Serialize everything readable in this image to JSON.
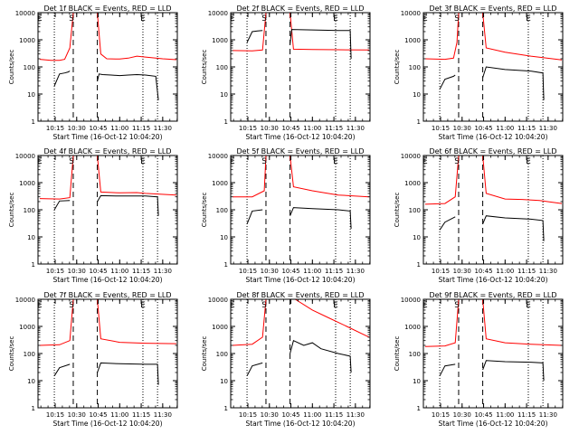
{
  "figure": {
    "start_time_label": "Start Time (16-Oct-12 10:04:20)",
    "ylabel": "Counts/sec",
    "y_tick_labels": [
      "1",
      "10",
      "100",
      "1000",
      "10000"
    ],
    "x_tick_labels": [
      "10:15",
      "10:30",
      "10:45",
      "11:00",
      "11:15",
      "11:30"
    ],
    "colors": {
      "events": "#000000",
      "lld": "#ff0000",
      "axes": "#000000"
    }
  },
  "chart_data": [
    {
      "type": "line",
      "title": "Det 1f BLACK = Events, RED = LLD",
      "xlim": [
        10.05,
        11.67
      ],
      "ylim": [
        1,
        10000
      ],
      "yscale": "log",
      "markers": [
        {
          "label": "E",
          "x": 10.07
        },
        {
          "label": "S",
          "x": 10.44
        },
        {
          "label": "E",
          "x": 11.27
        }
      ],
      "vlines": [
        {
          "x": 10.24,
          "style": "dotted"
        },
        {
          "x": 10.46,
          "style": "dashed"
        },
        {
          "x": 10.74,
          "style": "dashed"
        },
        {
          "x": 11.27,
          "style": "dotted"
        },
        {
          "x": 11.44,
          "style": "dotted"
        }
      ],
      "series": [
        {
          "name": "LLD",
          "color": "#ff0000",
          "x": [
            10.07,
            10.2,
            10.3,
            10.36,
            10.42,
            10.46,
            10.74,
            10.78,
            10.85,
            11.0,
            11.1,
            11.2,
            11.3,
            11.5,
            11.66
          ],
          "y": [
            190,
            175,
            175,
            190,
            500,
            10000,
            10000,
            300,
            200,
            195,
            210,
            250,
            230,
            200,
            185
          ]
        },
        {
          "name": "Events",
          "color": "#000000",
          "x": [
            10.24,
            10.3,
            10.36,
            10.4,
            10.42
          ],
          "y": [
            20,
            55,
            60,
            65,
            70
          ]
        },
        {
          "name": "Events",
          "color": "#000000",
          "x": [
            10.74,
            10.76,
            10.8,
            10.9,
            11.0,
            11.1,
            11.2,
            11.3,
            11.42,
            11.45
          ],
          "y": [
            30,
            55,
            52,
            50,
            48,
            50,
            52,
            50,
            45,
            6
          ]
        }
      ]
    },
    {
      "type": "line",
      "title": "Det 2f BLACK = Events, RED = LLD",
      "xlim": [
        10.05,
        11.67
      ],
      "ylim": [
        1,
        10000
      ],
      "yscale": "log",
      "markers": [
        {
          "label": "E",
          "x": 10.07
        },
        {
          "label": "S",
          "x": 10.44
        },
        {
          "label": "E",
          "x": 11.27
        }
      ],
      "vlines": [
        {
          "x": 10.24,
          "style": "dotted"
        },
        {
          "x": 10.46,
          "style": "dashed"
        },
        {
          "x": 10.74,
          "style": "dashed"
        },
        {
          "x": 11.27,
          "style": "dotted"
        },
        {
          "x": 11.44,
          "style": "dotted"
        }
      ],
      "series": [
        {
          "name": "LLD",
          "color": "#ff0000",
          "x": [
            10.07,
            10.3,
            10.42,
            10.46,
            10.74,
            10.78,
            11.0,
            11.3,
            11.66
          ],
          "y": [
            400,
            390,
            420,
            10000,
            10000,
            450,
            440,
            430,
            420
          ]
        },
        {
          "name": "Events",
          "color": "#000000",
          "x": [
            10.24,
            10.3,
            10.36,
            10.42
          ],
          "y": [
            800,
            2000,
            2100,
            2200
          ]
        },
        {
          "name": "Events",
          "color": "#000000",
          "x": [
            10.74,
            10.76,
            11.0,
            11.3,
            11.44,
            11.45
          ],
          "y": [
            700,
            2400,
            2300,
            2200,
            2200,
            200
          ]
        }
      ]
    },
    {
      "type": "line",
      "title": "Det 3f BLACK = Events, RED = LLD",
      "xlim": [
        10.05,
        11.67
      ],
      "ylim": [
        1,
        10000
      ],
      "yscale": "log",
      "markers": [
        {
          "label": "E",
          "x": 10.07
        },
        {
          "label": "S",
          "x": 10.44
        },
        {
          "label": "E",
          "x": 11.27
        }
      ],
      "vlines": [
        {
          "x": 10.24,
          "style": "dotted"
        },
        {
          "x": 10.46,
          "style": "dashed"
        },
        {
          "x": 10.74,
          "style": "dashed"
        },
        {
          "x": 11.27,
          "style": "dotted"
        },
        {
          "x": 11.44,
          "style": "dotted"
        }
      ],
      "series": [
        {
          "name": "LLD",
          "color": "#ff0000",
          "x": [
            10.07,
            10.3,
            10.4,
            10.44,
            10.46,
            10.74,
            10.78,
            11.0,
            11.3,
            11.66
          ],
          "y": [
            200,
            190,
            210,
            800,
            10000,
            10000,
            500,
            350,
            250,
            180
          ]
        },
        {
          "name": "Events",
          "color": "#000000",
          "x": [
            10.24,
            10.3,
            10.4,
            10.42
          ],
          "y": [
            15,
            35,
            45,
            50
          ]
        },
        {
          "name": "Events",
          "color": "#000000",
          "x": [
            10.74,
            10.78,
            11.0,
            11.3,
            11.44,
            11.45
          ],
          "y": [
            40,
            100,
            80,
            70,
            60,
            6
          ]
        }
      ]
    },
    {
      "type": "line",
      "title": "Det 4f BLACK = Events, RED = LLD",
      "xlim": [
        10.05,
        11.67
      ],
      "ylim": [
        1,
        10000
      ],
      "yscale": "log",
      "markers": [
        {
          "label": "E",
          "x": 10.07
        },
        {
          "label": "S",
          "x": 10.44
        },
        {
          "label": "E",
          "x": 11.27
        }
      ],
      "vlines": [
        {
          "x": 10.24,
          "style": "dotted"
        },
        {
          "x": 10.46,
          "style": "dashed"
        },
        {
          "x": 10.74,
          "style": "dashed"
        },
        {
          "x": 11.27,
          "style": "dotted"
        },
        {
          "x": 11.44,
          "style": "dotted"
        }
      ],
      "series": [
        {
          "name": "LLD",
          "color": "#ff0000",
          "x": [
            10.07,
            10.3,
            10.42,
            10.46,
            10.74,
            10.78,
            11.0,
            11.2,
            11.3,
            11.66
          ],
          "y": [
            260,
            250,
            280,
            10000,
            10000,
            450,
            420,
            430,
            400,
            350
          ]
        },
        {
          "name": "Events",
          "color": "#000000",
          "x": [
            10.24,
            10.3,
            10.42
          ],
          "y": [
            100,
            210,
            220
          ]
        },
        {
          "name": "Events",
          "color": "#000000",
          "x": [
            10.74,
            10.78,
            11.0,
            11.3,
            11.44,
            11.45
          ],
          "y": [
            200,
            330,
            320,
            320,
            300,
            60
          ]
        }
      ]
    },
    {
      "type": "line",
      "title": "Det 5f BLACK = Events, RED = LLD",
      "xlim": [
        10.05,
        11.67
      ],
      "ylim": [
        1,
        10000
      ],
      "yscale": "log",
      "markers": [
        {
          "label": "E",
          "x": 10.07
        },
        {
          "label": "S",
          "x": 10.44
        },
        {
          "label": "E",
          "x": 11.27
        }
      ],
      "vlines": [
        {
          "x": 10.24,
          "style": "dotted"
        },
        {
          "x": 10.46,
          "style": "dashed"
        },
        {
          "x": 10.74,
          "style": "dashed"
        },
        {
          "x": 11.27,
          "style": "dotted"
        },
        {
          "x": 11.44,
          "style": "dotted"
        }
      ],
      "series": [
        {
          "name": "LLD",
          "color": "#ff0000",
          "x": [
            10.07,
            10.3,
            10.44,
            10.46,
            10.74,
            10.78,
            11.0,
            11.3,
            11.66
          ],
          "y": [
            300,
            300,
            500,
            10000,
            10000,
            700,
            500,
            350,
            300
          ]
        },
        {
          "name": "Events",
          "color": "#000000",
          "x": [
            10.24,
            10.3,
            10.42
          ],
          "y": [
            30,
            90,
            100
          ]
        },
        {
          "name": "Events",
          "color": "#000000",
          "x": [
            10.74,
            10.78,
            11.0,
            11.3,
            11.44,
            11.45
          ],
          "y": [
            60,
            120,
            110,
            100,
            90,
            20
          ]
        }
      ]
    },
    {
      "type": "line",
      "title": "Det 6f BLACK = Events, RED = LLD",
      "xlim": [
        10.05,
        11.67
      ],
      "ylim": [
        1,
        10000
      ],
      "yscale": "log",
      "markers": [
        {
          "label": "E",
          "x": 10.07
        },
        {
          "label": "S",
          "x": 10.44
        },
        {
          "label": "E",
          "x": 11.27
        }
      ],
      "vlines": [
        {
          "x": 10.24,
          "style": "dotted"
        },
        {
          "x": 10.46,
          "style": "dashed"
        },
        {
          "x": 10.74,
          "style": "dashed"
        },
        {
          "x": 11.27,
          "style": "dotted"
        },
        {
          "x": 11.44,
          "style": "dotted"
        }
      ],
      "series": [
        {
          "name": "LLD",
          "color": "#ff0000",
          "x": [
            10.07,
            10.3,
            10.42,
            10.46,
            10.74,
            10.78,
            11.0,
            11.2,
            11.4,
            11.66
          ],
          "y": [
            160,
            170,
            300,
            10000,
            10000,
            400,
            250,
            240,
            220,
            170
          ]
        },
        {
          "name": "Events",
          "color": "#000000",
          "x": [
            10.24,
            10.3,
            10.42
          ],
          "y": [
            18,
            35,
            55
          ]
        },
        {
          "name": "Events",
          "color": "#000000",
          "x": [
            10.74,
            10.78,
            11.0,
            11.3,
            11.44,
            11.45
          ],
          "y": [
            30,
            60,
            50,
            45,
            40,
            7
          ]
        }
      ]
    },
    {
      "type": "line",
      "title": "Det 7f BLACK = Events, RED = LLD",
      "xlim": [
        10.05,
        11.67
      ],
      "ylim": [
        1,
        10000
      ],
      "yscale": "log",
      "markers": [
        {
          "label": "E",
          "x": 10.07
        },
        {
          "label": "S",
          "x": 10.44
        },
        {
          "label": "E",
          "x": 11.27
        }
      ],
      "vlines": [
        {
          "x": 10.24,
          "style": "dotted"
        },
        {
          "x": 10.46,
          "style": "dashed"
        },
        {
          "x": 10.74,
          "style": "dashed"
        },
        {
          "x": 11.27,
          "style": "dotted"
        },
        {
          "x": 11.44,
          "style": "dotted"
        }
      ],
      "series": [
        {
          "name": "LLD",
          "color": "#ff0000",
          "x": [
            10.07,
            10.3,
            10.42,
            10.46,
            10.74,
            10.78,
            11.0,
            11.3,
            11.66
          ],
          "y": [
            200,
            210,
            300,
            10000,
            10000,
            350,
            260,
            240,
            230
          ]
        },
        {
          "name": "Events",
          "color": "#000000",
          "x": [
            10.24,
            10.3,
            10.42
          ],
          "y": [
            15,
            30,
            40
          ]
        },
        {
          "name": "Events",
          "color": "#000000",
          "x": [
            10.74,
            10.78,
            11.0,
            11.3,
            11.44,
            11.45
          ],
          "y": [
            20,
            45,
            42,
            40,
            40,
            7
          ]
        }
      ]
    },
    {
      "type": "line",
      "title": "Det 8f BLACK = Events, RED = LLD",
      "xlim": [
        10.05,
        11.67
      ],
      "ylim": [
        1,
        10000
      ],
      "yscale": "log",
      "markers": [
        {
          "label": "E",
          "x": 10.07
        },
        {
          "label": "S",
          "x": 10.44
        },
        {
          "label": "E",
          "x": 11.27
        }
      ],
      "vlines": [
        {
          "x": 10.24,
          "style": "dotted"
        },
        {
          "x": 10.46,
          "style": "dashed"
        },
        {
          "x": 10.74,
          "style": "dashed"
        },
        {
          "x": 11.27,
          "style": "dotted"
        },
        {
          "x": 11.44,
          "style": "dotted"
        }
      ],
      "series": [
        {
          "name": "LLD",
          "color": "#ff0000",
          "x": [
            10.07,
            10.3,
            10.42,
            10.46,
            10.74,
            10.8,
            11.0,
            11.2,
            11.4,
            11.66
          ],
          "y": [
            200,
            220,
            400,
            10000,
            10000,
            10000,
            4000,
            2000,
            1000,
            400
          ]
        },
        {
          "name": "Events",
          "color": "#000000",
          "x": [
            10.24,
            10.3,
            10.42
          ],
          "y": [
            15,
            35,
            45
          ]
        },
        {
          "name": "Events",
          "color": "#000000",
          "x": [
            10.74,
            10.78,
            10.9,
            11.0,
            11.1,
            11.3,
            11.44,
            11.45
          ],
          "y": [
            100,
            300,
            200,
            250,
            150,
            100,
            80,
            20
          ]
        }
      ]
    },
    {
      "type": "line",
      "title": "Det 9f BLACK = Events, RED = LLD",
      "xlim": [
        10.05,
        11.67
      ],
      "ylim": [
        1,
        10000
      ],
      "yscale": "log",
      "markers": [
        {
          "label": "E",
          "x": 10.07
        },
        {
          "label": "S",
          "x": 10.44
        },
        {
          "label": "E",
          "x": 11.27
        }
      ],
      "vlines": [
        {
          "x": 10.24,
          "style": "dotted"
        },
        {
          "x": 10.46,
          "style": "dashed"
        },
        {
          "x": 10.74,
          "style": "dashed"
        },
        {
          "x": 11.27,
          "style": "dotted"
        },
        {
          "x": 11.44,
          "style": "dotted"
        }
      ],
      "series": [
        {
          "name": "LLD",
          "color": "#ff0000",
          "x": [
            10.07,
            10.3,
            10.42,
            10.46,
            10.74,
            10.78,
            11.0,
            11.3,
            11.66
          ],
          "y": [
            180,
            190,
            250,
            10000,
            10000,
            350,
            250,
            220,
            200
          ]
        },
        {
          "name": "Events",
          "color": "#000000",
          "x": [
            10.24,
            10.3,
            10.42
          ],
          "y": [
            15,
            35,
            40
          ]
        },
        {
          "name": "Events",
          "color": "#000000",
          "x": [
            10.74,
            10.78,
            11.0,
            11.3,
            11.44,
            11.45
          ],
          "y": [
            25,
            55,
            50,
            48,
            45,
            10
          ]
        }
      ]
    }
  ]
}
